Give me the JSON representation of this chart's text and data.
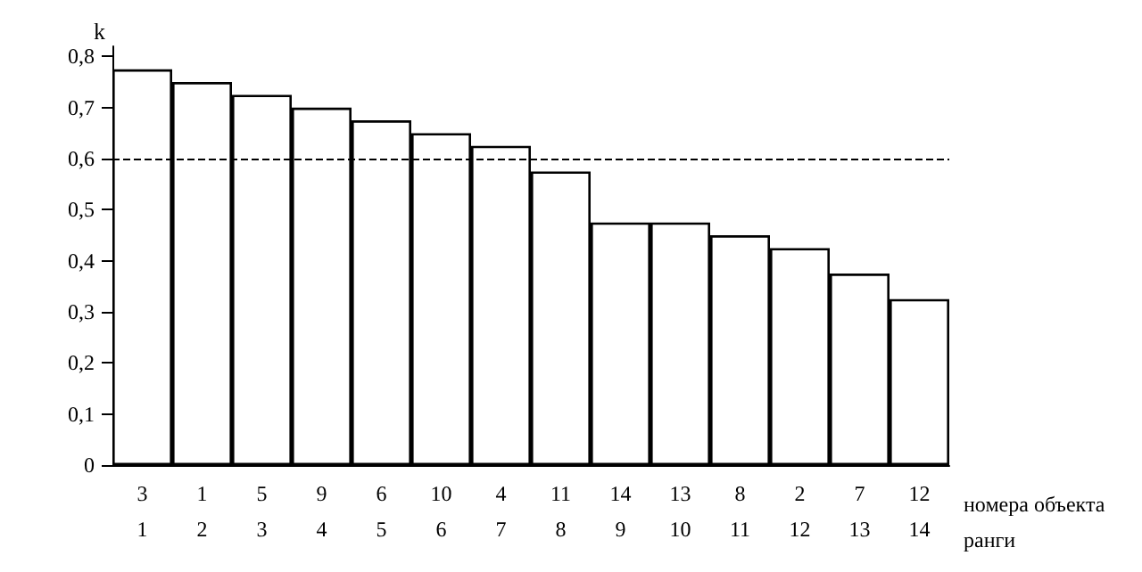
{
  "chart_data": {
    "type": "bar",
    "ylabel": "k",
    "xlabel": "номера объекта\nранги",
    "categories": [
      "3\n1",
      "1\n2",
      "5\n3",
      "9\n4",
      "6\n5",
      "10\n6",
      "4\n7",
      "11\n8",
      "14\n9",
      "13\n10",
      "8\n11",
      "2\n12",
      "7\n13",
      "12\n14"
    ],
    "values": [
      0.775,
      0.75,
      0.725,
      0.7,
      0.675,
      0.65,
      0.625,
      0.575,
      0.475,
      0.475,
      0.45,
      0.425,
      0.375,
      0.325
    ],
    "color": "#ffffff",
    "ylim": [
      0,
      0.82
    ],
    "yticks": [
      0,
      {
        "value": 0.1,
        "label": "0,1"
      },
      {
        "value": 0.2,
        "label": "0,2"
      },
      {
        "value": 0.3,
        "label": "0,3"
      },
      {
        "value": 0.4,
        "label": "0,4"
      },
      {
        "value": 0.5,
        "label": "0,5"
      },
      {
        "value": 0.6,
        "label": "0,6"
      },
      {
        "value": 0.7,
        "label": "0,7"
      },
      {
        "value": 0.8,
        "label": "0,8"
      }
    ],
    "ref_lines": [
      {
        "axis": "y",
        "value": 0.6,
        "color": "#000000",
        "line_style": "dashed"
      }
    ],
    "grid": false
  }
}
